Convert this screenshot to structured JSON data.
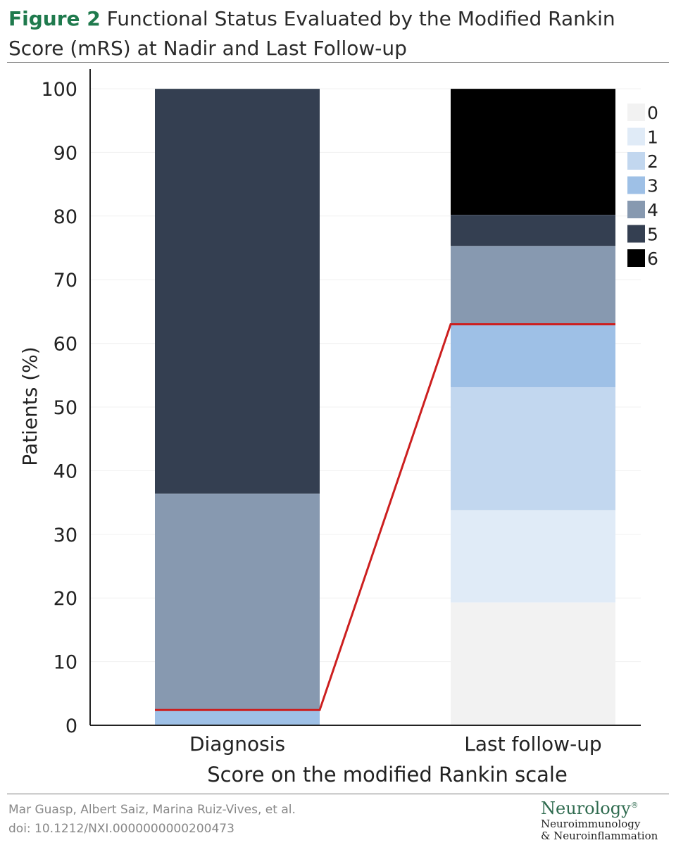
{
  "figure": {
    "label": "Figure 2",
    "title": "Functional Status Evaluated by the Modified Rankin Score (mRS) at Nadir and Last Follow-up"
  },
  "footer": {
    "authors": "Mar Guasp, Albert Saiz, Marina Ruiz-Vives, et al.",
    "doi": "doi: 10.1212/NXI.0000000000200473",
    "journal_brand": "Neurology",
    "journal_mark": "®",
    "journal_line1": "Neuroimmunology",
    "journal_line2": "& Neuroinflammation"
  },
  "chart_data": {
    "type": "bar",
    "stacked": true,
    "categories": [
      "Diagnosis",
      "Last follow-up"
    ],
    "xlabel": "Score on the modified Rankin scale",
    "ylabel": "Patients (%)",
    "ylim": [
      0,
      100
    ],
    "yticks": [
      0,
      10,
      20,
      30,
      40,
      50,
      60,
      70,
      80,
      90,
      100
    ],
    "legend_position": "top-right",
    "series": [
      {
        "name": "0",
        "color": "#f2f2f2",
        "values": [
          0,
          19.3
        ]
      },
      {
        "name": "1",
        "color": "#e0ebf7",
        "values": [
          0,
          14.5
        ]
      },
      {
        "name": "2",
        "color": "#c2d7ef",
        "values": [
          0,
          19.3
        ]
      },
      {
        "name": "3",
        "color": "#9ec0e6",
        "values": [
          2.4,
          9.9
        ]
      },
      {
        "name": "4",
        "color": "#8799b0",
        "values": [
          34.0,
          12.3
        ]
      },
      {
        "name": "5",
        "color": "#343f51",
        "values": [
          63.6,
          4.9
        ]
      },
      {
        "name": "6",
        "color": "#000000",
        "values": [
          0,
          19.8
        ]
      }
    ],
    "threshold_line": {
      "color": "#cc1f1f",
      "values": [
        2.4,
        63.0
      ]
    }
  }
}
